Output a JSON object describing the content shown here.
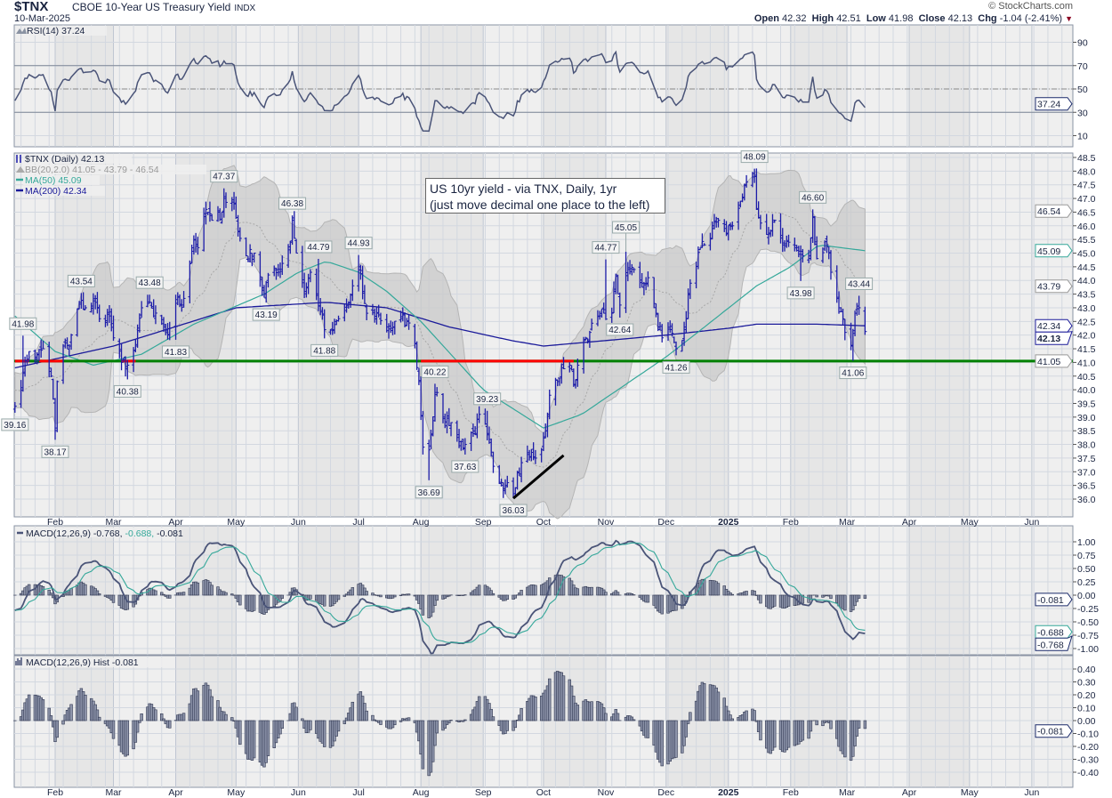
{
  "header": {
    "symbol": "$TNX",
    "name": "CBOE 10-Year US Treasury Yield",
    "exchange": "INDX",
    "date": "10-Mar-2025",
    "brand": "© StockCharts.com",
    "open_label": "Open",
    "open": "42.32",
    "high_label": "High",
    "high": "42.51",
    "low_label": "Low",
    "low": "41.98",
    "close_label": "Close",
    "close": "42.13",
    "chg_label": "Chg",
    "chg": "-1.04 (-2.41%)"
  },
  "note": {
    "line1": "US 10yr yield - via TNX, Daily, 1yr",
    "line2": "(just move decimal one place to the left)"
  },
  "legends": {
    "rsi": "RSI(14) 37.24",
    "price": "$TNX (Daily) 42.13",
    "bb": "BB(20,2.0) 41.05 - 43.79 - 46.54",
    "ma50": "MA(50) 45.09",
    "ma200": "MA(200) 42.34",
    "macd_prefix": "MACD(12,26,9)",
    "macd_v1": "-0.768,",
    "macd_v2": "-0.688,",
    "macd_v3": "-0.081",
    "hist": "MACD(12,26,9) Hist -0.081"
  },
  "colors": {
    "bars": "#1c1ca8",
    "ma50": "#35a89a",
    "ma200": "#1a1a9a",
    "bb_fill": "#c9c9c9",
    "macd": "#4a5478",
    "signal": "#35a89a",
    "hist_fill": "#8d94aa",
    "hist_stroke": "#2f3650",
    "hline": "#008000",
    "hline_below": "#ff0000",
    "down": "#8b0020"
  },
  "chart_data": {
    "type": "ohlc",
    "title": "$TNX CBOE 10-Year US Treasury Yield",
    "start": "2024-01-12",
    "end": "2025-03-10",
    "close_waypoints": [
      [
        "2024-01-12",
        39.4
      ],
      [
        "2024-01-16",
        40.6
      ],
      [
        "2024-01-19",
        41.4
      ],
      [
        "2024-01-23",
        41.3
      ],
      [
        "2024-01-26",
        41.5
      ],
      [
        "2024-01-30",
        40.5
      ],
      [
        "2024-02-01",
        38.6
      ],
      [
        "2024-02-02",
        40.3
      ],
      [
        "2024-02-05",
        41.6
      ],
      [
        "2024-02-08",
        41.6
      ],
      [
        "2024-02-13",
        43.2
      ],
      [
        "2024-02-16",
        43.0
      ],
      [
        "2024-02-21",
        43.2
      ],
      [
        "2024-02-23",
        42.6
      ],
      [
        "2024-02-28",
        42.7
      ],
      [
        "2024-03-01",
        41.9
      ],
      [
        "2024-03-05",
        41.0
      ],
      [
        "2024-03-08",
        40.9
      ],
      [
        "2024-03-12",
        41.6
      ],
      [
        "2024-03-15",
        43.0
      ],
      [
        "2024-03-19",
        43.2
      ],
      [
        "2024-03-21",
        42.7
      ],
      [
        "2024-03-26",
        42.3
      ],
      [
        "2024-03-28",
        42.0
      ],
      [
        "2024-04-01",
        43.3
      ],
      [
        "2024-04-04",
        43.1
      ],
      [
        "2024-04-10",
        45.5
      ],
      [
        "2024-04-12",
        45.2
      ],
      [
        "2024-04-16",
        46.6
      ],
      [
        "2024-04-19",
        46.2
      ],
      [
        "2024-04-24",
        46.5
      ],
      [
        "2024-04-25",
        47.0
      ],
      [
        "2024-04-30",
        46.8
      ],
      [
        "2024-05-02",
        45.8
      ],
      [
        "2024-05-06",
        44.9
      ],
      [
        "2024-05-10",
        45.0
      ],
      [
        "2024-05-15",
        43.5
      ],
      [
        "2024-05-17",
        44.2
      ],
      [
        "2024-05-22",
        44.3
      ],
      [
        "2024-05-28",
        45.4
      ],
      [
        "2024-05-29",
        46.2
      ],
      [
        "2024-05-31",
        45.0
      ],
      [
        "2024-06-04",
        43.6
      ],
      [
        "2024-06-07",
        44.3
      ],
      [
        "2024-06-12",
        42.9
      ],
      [
        "2024-06-14",
        42.2
      ],
      [
        "2024-06-18",
        42.2
      ],
      [
        "2024-06-21",
        42.6
      ],
      [
        "2024-06-26",
        43.2
      ],
      [
        "2024-07-01",
        44.5
      ],
      [
        "2024-07-03",
        43.6
      ],
      [
        "2024-07-05",
        42.8
      ],
      [
        "2024-07-10",
        42.8
      ],
      [
        "2024-07-15",
        42.3
      ],
      [
        "2024-07-18",
        42.3
      ],
      [
        "2024-07-22",
        42.6
      ],
      [
        "2024-07-25",
        42.5
      ],
      [
        "2024-07-29",
        41.7
      ],
      [
        "2024-07-31",
        40.3
      ],
      [
        "2024-08-02",
        37.9
      ],
      [
        "2024-08-05",
        37.8
      ],
      [
        "2024-08-08",
        39.9
      ],
      [
        "2024-08-12",
        39.0
      ],
      [
        "2024-08-16",
        38.8
      ],
      [
        "2024-08-20",
        38.1
      ],
      [
        "2024-08-23",
        38.0
      ],
      [
        "2024-08-28",
        38.4
      ],
      [
        "2024-08-30",
        39.1
      ],
      [
        "2024-09-03",
        38.4
      ],
      [
        "2024-09-06",
        37.2
      ],
      [
        "2024-09-10",
        36.5
      ],
      [
        "2024-09-13",
        36.6
      ],
      [
        "2024-09-16",
        36.2
      ],
      [
        "2024-09-18",
        37.0
      ],
      [
        "2024-09-23",
        37.7
      ],
      [
        "2024-09-27",
        37.5
      ],
      [
        "2024-09-30",
        37.8
      ],
      [
        "2024-10-02",
        38.5
      ],
      [
        "2024-10-04",
        39.8
      ],
      [
        "2024-10-08",
        40.3
      ],
      [
        "2024-10-10",
        40.8
      ],
      [
        "2024-10-14",
        40.9
      ],
      [
        "2024-10-16",
        40.2
      ],
      [
        "2024-10-18",
        40.9
      ],
      [
        "2024-10-21",
        41.8
      ],
      [
        "2024-10-24",
        42.1
      ],
      [
        "2024-10-28",
        42.7
      ],
      [
        "2024-10-31",
        42.8
      ],
      [
        "2024-11-04",
        42.8
      ],
      [
        "2024-11-06",
        44.2
      ],
      [
        "2024-11-08",
        43.1
      ],
      [
        "2024-11-12",
        44.4
      ],
      [
        "2024-11-15",
        44.4
      ],
      [
        "2024-11-19",
        43.9
      ],
      [
        "2024-11-22",
        44.1
      ],
      [
        "2024-11-26",
        42.8
      ],
      [
        "2024-11-29",
        41.9
      ],
      [
        "2024-12-03",
        42.2
      ],
      [
        "2024-12-06",
        41.5
      ],
      [
        "2024-12-10",
        42.2
      ],
      [
        "2024-12-13",
        43.9
      ],
      [
        "2024-12-18",
        45.2
      ],
      [
        "2024-12-20",
        45.3
      ],
      [
        "2024-12-24",
        45.9
      ],
      [
        "2024-12-27",
        46.2
      ],
      [
        "2024-12-31",
        45.7
      ],
      [
        "2025-01-03",
        46.0
      ],
      [
        "2025-01-07",
        46.9
      ],
      [
        "2025-01-10",
        47.6
      ],
      [
        "2025-01-14",
        47.8
      ],
      [
        "2025-01-15",
        46.6
      ],
      [
        "2025-01-17",
        46.1
      ],
      [
        "2025-01-21",
        45.7
      ],
      [
        "2025-01-24",
        46.2
      ],
      [
        "2025-01-28",
        45.3
      ],
      [
        "2025-01-31",
        45.4
      ],
      [
        "2025-02-04",
        45.1
      ],
      [
        "2025-02-07",
        44.9
      ],
      [
        "2025-02-10",
        44.9
      ],
      [
        "2025-02-12",
        46.3
      ],
      [
        "2025-02-14",
        44.8
      ],
      [
        "2025-02-19",
        45.3
      ],
      [
        "2025-02-21",
        44.3
      ],
      [
        "2025-02-25",
        43.0
      ],
      [
        "2025-02-28",
        42.1
      ],
      [
        "2025-03-03",
        41.6
      ],
      [
        "2025-03-05",
        42.8
      ],
      [
        "2025-03-07",
        43.0
      ],
      [
        "2025-03-10",
        42.13
      ]
    ],
    "ma50_waypoints": [
      [
        "2024-01-12",
        42.7
      ],
      [
        "2024-02-01",
        41.4
      ],
      [
        "2024-02-20",
        40.9
      ],
      [
        "2024-03-15",
        41.3
      ],
      [
        "2024-04-10",
        42.4
      ],
      [
        "2024-05-15",
        43.5
      ],
      [
        "2024-06-01",
        44.3
      ],
      [
        "2024-06-15",
        44.7
      ],
      [
        "2024-07-01",
        44.3
      ],
      [
        "2024-07-15",
        43.6
      ],
      [
        "2024-08-01",
        42.5
      ],
      [
        "2024-09-01",
        40.0
      ],
      [
        "2024-10-01",
        38.6
      ],
      [
        "2024-10-20",
        39.1
      ],
      [
        "2024-11-15",
        40.4
      ],
      [
        "2024-12-01",
        41.2
      ],
      [
        "2024-12-15",
        42.0
      ],
      [
        "2025-01-15",
        43.8
      ],
      [
        "2025-02-01",
        44.5
      ],
      [
        "2025-02-15",
        45.3
      ],
      [
        "2025-03-10",
        45.09
      ]
    ],
    "ma200_waypoints": [
      [
        "2024-01-12",
        40.8
      ],
      [
        "2024-03-01",
        41.6
      ],
      [
        "2024-05-01",
        43.0
      ],
      [
        "2024-06-15",
        43.2
      ],
      [
        "2024-07-15",
        43.0
      ],
      [
        "2024-08-15",
        42.3
      ],
      [
        "2024-09-15",
        41.8
      ],
      [
        "2024-10-01",
        41.6
      ],
      [
        "2024-11-01",
        41.8
      ],
      [
        "2024-12-01",
        42.0
      ],
      [
        "2025-01-01",
        42.25
      ],
      [
        "2025-01-15",
        42.4
      ],
      [
        "2025-02-15",
        42.4
      ],
      [
        "2025-03-10",
        42.34
      ]
    ],
    "annotations": [
      [
        "2024-01-16",
        41.98,
        "high",
        "41.98"
      ],
      [
        "2024-01-12",
        39.16,
        "low",
        "39.16"
      ],
      [
        "2024-02-01",
        38.17,
        "low",
        "38.17"
      ],
      [
        "2024-02-14",
        43.54,
        "high",
        "43.54"
      ],
      [
        "2024-03-08",
        40.38,
        "low",
        "40.38"
      ],
      [
        "2024-03-19",
        43.48,
        "high",
        "43.48"
      ],
      [
        "2024-04-01",
        41.83,
        "low",
        "41.83"
      ],
      [
        "2024-04-25",
        47.37,
        "high",
        "47.37"
      ],
      [
        "2024-05-29",
        46.38,
        "high",
        "46.38"
      ],
      [
        "2024-05-16",
        43.19,
        "low",
        "43.19"
      ],
      [
        "2024-06-11",
        44.79,
        "high",
        "44.79"
      ],
      [
        "2024-06-14",
        41.88,
        "low",
        "41.88"
      ],
      [
        "2024-07-01",
        44.93,
        "high",
        "44.93"
      ],
      [
        "2024-08-05",
        36.69,
        "low",
        "36.69"
      ],
      [
        "2024-08-08",
        40.22,
        "high",
        "40.22"
      ],
      [
        "2024-08-23",
        37.63,
        "low",
        "37.63"
      ],
      [
        "2024-09-03",
        39.23,
        "high",
        "39.23"
      ],
      [
        "2024-09-16",
        36.03,
        "low",
        "36.03"
      ],
      [
        "2024-11-01",
        44.77,
        "high",
        "44.77"
      ],
      [
        "2024-11-11",
        45.05,
        "high",
        "45.05"
      ],
      [
        "2024-11-08",
        42.64,
        "low",
        "42.64"
      ],
      [
        "2024-12-06",
        41.26,
        "low",
        "41.26"
      ],
      [
        "2025-01-14",
        48.09,
        "high",
        "48.09"
      ],
      [
        "2025-02-12",
        46.6,
        "high",
        "46.60"
      ],
      [
        "2025-02-06",
        43.98,
        "low",
        "43.98"
      ],
      [
        "2025-03-04",
        41.06,
        "low",
        "41.06"
      ],
      [
        "2025-03-07",
        43.44,
        "high",
        "43.44"
      ]
    ],
    "horizontal_line": {
      "value": 41.05,
      "below_segments": [
        [
          "2024-01-12",
          "2024-01-19"
        ],
        [
          "2024-01-24",
          "2024-02-05"
        ],
        [
          "2024-03-05",
          "2024-03-12"
        ],
        [
          "2024-08-01",
          "2024-10-16"
        ]
      ]
    },
    "trend_line": [
      [
        "2024-09-16",
        36.03
      ],
      [
        "2024-10-11",
        37.6
      ]
    ],
    "price_axis": {
      "ylim": [
        35.5,
        48.7
      ],
      "ticks": [
        "48.5",
        "48.0",
        "47.5",
        "47.0",
        "46.5",
        "46.0",
        "45.5",
        "45.0",
        "44.5",
        "44.0",
        "43.5",
        "43.0",
        "42.5",
        "42.0",
        "41.5",
        "41.0",
        "40.5",
        "40.0",
        "39.5",
        "39.0",
        "38.5",
        "38.0",
        "37.5",
        "37.0",
        "36.5",
        "36.0"
      ]
    },
    "price_tags": [
      [
        "46.54",
        "bb"
      ],
      [
        "45.09",
        "ma50"
      ],
      [
        "43.79",
        "bb"
      ],
      [
        "42.34",
        "ma200"
      ],
      [
        "42.13",
        "close"
      ],
      [
        "41.05",
        "bb"
      ]
    ],
    "rsi": {
      "period": 14,
      "ticks": [
        "90",
        "70",
        "50",
        "30",
        "10"
      ],
      "last": "37.24"
    },
    "macd": {
      "params": [
        12,
        26,
        9
      ],
      "ticks": [
        "1.00",
        "0.75",
        "0.50",
        "0.25",
        "0.00",
        "-0.25",
        "-0.50",
        "-0.75",
        "-1.00"
      ],
      "tags": [
        "-0.081",
        "-0.688",
        "-0.768"
      ]
    },
    "hist": {
      "ticks": [
        "0.40",
        "0.30",
        "0.20",
        "0.10",
        "0.00",
        "-0.10",
        "-0.20",
        "-0.30",
        "-0.40"
      ],
      "tag": "-0.081"
    },
    "months": [
      [
        "2024-02-01",
        "Feb"
      ],
      [
        "2024-03-01",
        "Mar"
      ],
      [
        "2024-04-01",
        "Apr"
      ],
      [
        "2024-05-01",
        "May"
      ],
      [
        "2024-06-01",
        "Jun"
      ],
      [
        "2024-07-01",
        "Jul"
      ],
      [
        "2024-08-01",
        "Aug"
      ],
      [
        "2024-09-01",
        "Sep"
      ],
      [
        "2024-10-01",
        "Oct"
      ],
      [
        "2024-11-01",
        "Nov"
      ],
      [
        "2024-12-01",
        "Dec"
      ],
      [
        "2025-01-01",
        "2025"
      ],
      [
        "2025-02-01",
        "Feb"
      ],
      [
        "2025-03-01",
        "Mar"
      ],
      [
        "2025-04-01",
        "Apr"
      ],
      [
        "2025-05-01",
        "May"
      ],
      [
        "2025-06-01",
        "Jun"
      ]
    ]
  }
}
